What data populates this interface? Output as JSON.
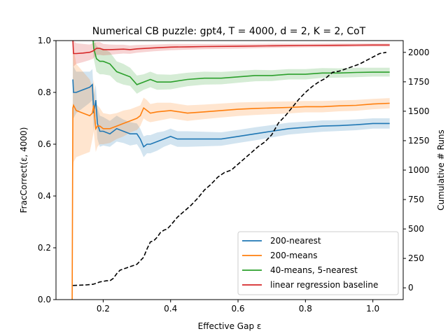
{
  "chart_data": {
    "type": "line",
    "title": "Numerical CB puzzle: gpt4, T = 4000, d = 2, K = 2, CoT",
    "xlabel": "Effective Gap ε",
    "ylabel": "FracCorrect(ε, 4000)",
    "y2label": "Cumulative # Runs",
    "xlim": [
      0.06,
      1.09
    ],
    "ylim": [
      0.0,
      1.0
    ],
    "y2lim": [
      -100,
      2100
    ],
    "xticks": [
      0.2,
      0.4,
      0.6,
      0.8,
      1.0
    ],
    "xtick_labels": [
      "0.2",
      "0.4",
      "0.6",
      "0.8",
      "1.0"
    ],
    "yticks": [
      0.0,
      0.2,
      0.4,
      0.6,
      0.8,
      1.0
    ],
    "ytick_labels": [
      "0.0",
      "0.2",
      "0.4",
      "0.6",
      "0.8",
      "1.0"
    ],
    "y2ticks": [
      0,
      250,
      500,
      750,
      1000,
      1250,
      1500,
      1750,
      2000
    ],
    "y2tick_labels": [
      "0",
      "250",
      "500",
      "750",
      "1000",
      "1250",
      "1500",
      "1750",
      "2000"
    ],
    "legend_position": "lower-right",
    "series": [
      {
        "name": "200-nearest",
        "color": "#1f77b4",
        "x": [
          0.11,
          0.112,
          0.12,
          0.14,
          0.16,
          0.168,
          0.172,
          0.178,
          0.183,
          0.19,
          0.2,
          0.22,
          0.24,
          0.26,
          0.28,
          0.3,
          0.31,
          0.32,
          0.33,
          0.34,
          0.36,
          0.38,
          0.4,
          0.42,
          0.45,
          0.5,
          0.55,
          0.6,
          0.65,
          0.7,
          0.75,
          0.8,
          0.85,
          0.9,
          0.95,
          1.0,
          1.05
        ],
        "y": [
          0.85,
          0.8,
          0.8,
          0.81,
          0.82,
          0.83,
          0.72,
          0.77,
          0.68,
          0.65,
          0.65,
          0.64,
          0.66,
          0.65,
          0.64,
          0.64,
          0.62,
          0.59,
          0.6,
          0.6,
          0.61,
          0.62,
          0.63,
          0.62,
          0.62,
          0.62,
          0.62,
          0.63,
          0.64,
          0.65,
          0.66,
          0.665,
          0.67,
          0.672,
          0.675,
          0.68,
          0.68
        ],
        "band": [
          0.1,
          0.1,
          0.08,
          0.07,
          0.06,
          0.06,
          0.07,
          0.06,
          0.06,
          0.06,
          0.055,
          0.05,
          0.05,
          0.045,
          0.045,
          0.04,
          0.04,
          0.04,
          0.035,
          0.035,
          0.035,
          0.03,
          0.03,
          0.03,
          0.03,
          0.028,
          0.026,
          0.025,
          0.025,
          0.024,
          0.023,
          0.022,
          0.022,
          0.021,
          0.021,
          0.02,
          0.02
        ]
      },
      {
        "name": "200-means",
        "color": "#ff7f0e",
        "x": [
          0.108,
          0.11,
          0.112,
          0.12,
          0.14,
          0.16,
          0.168,
          0.172,
          0.178,
          0.183,
          0.19,
          0.2,
          0.22,
          0.24,
          0.26,
          0.28,
          0.3,
          0.31,
          0.32,
          0.33,
          0.34,
          0.36,
          0.4,
          0.45,
          0.5,
          0.55,
          0.6,
          0.65,
          0.7,
          0.75,
          0.8,
          0.85,
          0.9,
          0.95,
          1.0,
          1.05
        ],
        "y": [
          0.0,
          0.74,
          0.75,
          0.73,
          0.72,
          0.71,
          0.72,
          0.75,
          0.66,
          0.67,
          0.67,
          0.66,
          0.66,
          0.67,
          0.68,
          0.69,
          0.7,
          0.71,
          0.74,
          0.73,
          0.72,
          0.725,
          0.73,
          0.72,
          0.725,
          0.73,
          0.735,
          0.738,
          0.74,
          0.742,
          0.745,
          0.745,
          0.748,
          0.75,
          0.755,
          0.758
        ],
        "band": [
          0.0,
          0.25,
          0.22,
          0.18,
          0.16,
          0.14,
          0.1,
          0.1,
          0.09,
          0.08,
          0.07,
          0.06,
          0.055,
          0.05,
          0.05,
          0.045,
          0.045,
          0.04,
          0.04,
          0.04,
          0.035,
          0.035,
          0.03,
          0.03,
          0.028,
          0.027,
          0.026,
          0.025,
          0.024,
          0.023,
          0.022,
          0.022,
          0.021,
          0.021,
          0.02,
          0.02
        ]
      },
      {
        "name": "40-means, 5-nearest",
        "color": "#2ca02c",
        "x": [
          0.17,
          0.172,
          0.18,
          0.19,
          0.2,
          0.22,
          0.24,
          0.26,
          0.28,
          0.3,
          0.32,
          0.34,
          0.36,
          0.4,
          0.45,
          0.5,
          0.55,
          0.6,
          0.65,
          0.7,
          0.75,
          0.8,
          0.85,
          0.9,
          0.95,
          1.0,
          1.05
        ],
        "y": [
          1.0,
          0.97,
          0.93,
          0.92,
          0.92,
          0.91,
          0.88,
          0.87,
          0.86,
          0.83,
          0.84,
          0.85,
          0.84,
          0.84,
          0.85,
          0.855,
          0.855,
          0.86,
          0.865,
          0.865,
          0.87,
          0.87,
          0.875,
          0.875,
          0.877,
          0.878,
          0.878
        ],
        "band": [
          0.03,
          0.04,
          0.05,
          0.05,
          0.05,
          0.045,
          0.04,
          0.04,
          0.035,
          0.035,
          0.03,
          0.03,
          0.03,
          0.028,
          0.026,
          0.025,
          0.024,
          0.023,
          0.022,
          0.021,
          0.02,
          0.02,
          0.019,
          0.018,
          0.018,
          0.017,
          0.017
        ]
      },
      {
        "name": "linear regression baseline",
        "color": "#d62728",
        "x": [
          0.11,
          0.112,
          0.12,
          0.14,
          0.16,
          0.17,
          0.18,
          0.19,
          0.2,
          0.22,
          0.24,
          0.26,
          0.28,
          0.3,
          0.35,
          0.4,
          0.45,
          0.5,
          0.6,
          0.7,
          0.8,
          0.9,
          1.0,
          1.05
        ],
        "y": [
          1.0,
          0.95,
          0.95,
          0.952,
          0.955,
          0.96,
          0.97,
          0.97,
          0.965,
          0.965,
          0.966,
          0.967,
          0.965,
          0.968,
          0.972,
          0.975,
          0.976,
          0.977,
          0.978,
          0.98,
          0.981,
          0.982,
          0.983,
          0.983
        ],
        "band": [
          0.05,
          0.05,
          0.04,
          0.035,
          0.03,
          0.03,
          0.025,
          0.025,
          0.022,
          0.02,
          0.018,
          0.017,
          0.016,
          0.015,
          0.013,
          0.012,
          0.011,
          0.01,
          0.009,
          0.008,
          0.007,
          0.007,
          0.006,
          0.006
        ]
      }
    ],
    "secondary_series": {
      "color": "#000000",
      "x": [
        0.11,
        0.15,
        0.17,
        0.18,
        0.19,
        0.2,
        0.21,
        0.22,
        0.23,
        0.24,
        0.25,
        0.26,
        0.27,
        0.28,
        0.29,
        0.3,
        0.31,
        0.32,
        0.33,
        0.34,
        0.35,
        0.36,
        0.37,
        0.38,
        0.39,
        0.4,
        0.42,
        0.44,
        0.46,
        0.48,
        0.5,
        0.52,
        0.54,
        0.56,
        0.58,
        0.6,
        0.62,
        0.64,
        0.66,
        0.68,
        0.7,
        0.72,
        0.74,
        0.76,
        0.78,
        0.8,
        0.82,
        0.84,
        0.86,
        0.88,
        0.9,
        0.92,
        0.94,
        0.96,
        0.98,
        1.0,
        1.02,
        1.04
      ],
      "y": [
        20,
        25,
        30,
        40,
        50,
        55,
        60,
        60,
        80,
        120,
        150,
        160,
        170,
        180,
        190,
        200,
        230,
        260,
        330,
        390,
        400,
        430,
        470,
        490,
        500,
        530,
        600,
        650,
        700,
        760,
        830,
        880,
        940,
        980,
        1000,
        1050,
        1100,
        1150,
        1200,
        1240,
        1300,
        1400,
        1460,
        1530,
        1600,
        1660,
        1710,
        1750,
        1780,
        1830,
        1840,
        1860,
        1880,
        1900,
        1930,
        1960,
        1990,
        2000
      ]
    }
  }
}
